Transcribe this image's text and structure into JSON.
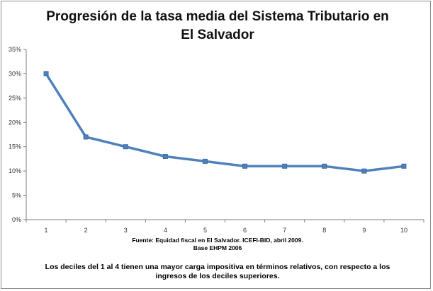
{
  "chart_data": {
    "type": "line",
    "title": "Progresión de la tasa media del Sistema Tributario en El Salvador",
    "categories": [
      "1",
      "2",
      "3",
      "4",
      "5",
      "6",
      "7",
      "8",
      "9",
      "10"
    ],
    "series": [
      {
        "values": [
          30,
          17,
          15,
          13,
          12,
          11,
          11,
          11,
          10,
          11
        ],
        "color": "#4f81bd"
      }
    ],
    "yticks": [
      "0%",
      "5%",
      "10%",
      "15%",
      "20%",
      "25%",
      "30%",
      "35%"
    ],
    "ylim": [
      0,
      35
    ],
    "grid": false,
    "source_lines": [
      "Fuente: Equidad fiscal en El Salvador. ICEFI-BID, abril 2009.",
      "Base EHPM 2006"
    ],
    "note": "Los deciles del 1 al 4 tienen una mayor carga impositiva en términos relativos, con respecto a los ingresos de los deciles superiores."
  }
}
